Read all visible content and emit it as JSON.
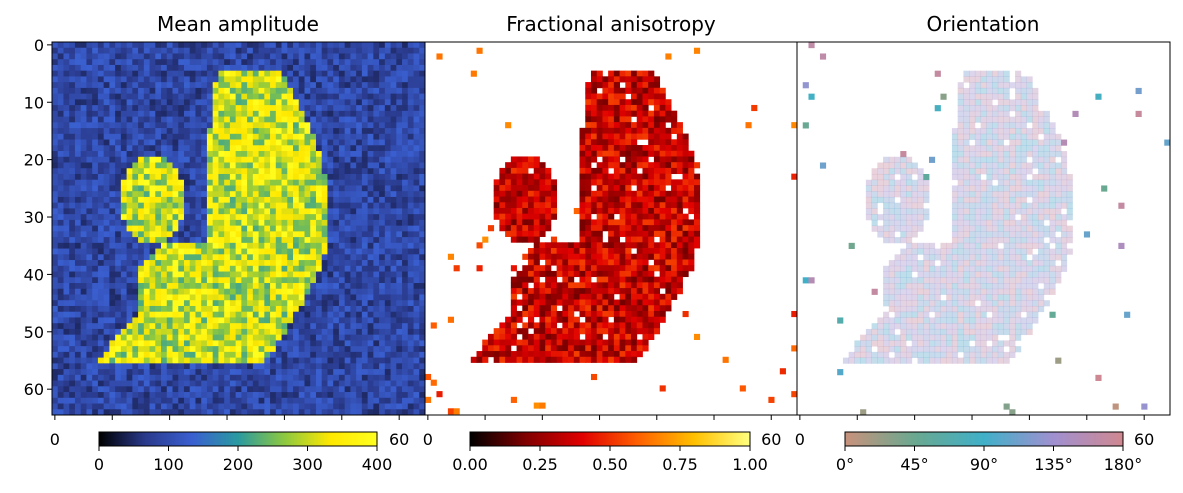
{
  "chart_data": [
    {
      "type": "heatmap",
      "title": "Mean amplitude",
      "grid_size": [
        65,
        65
      ],
      "xlim": [
        0,
        64
      ],
      "ylim": [
        64,
        0
      ],
      "y_ticks": [
        "0",
        "10",
        "20",
        "30",
        "40",
        "50",
        "60"
      ],
      "x_ticks": [
        "0",
        "60"
      ],
      "colorbar": {
        "min": 0,
        "max": 400,
        "ticks": [
          "0",
          "100",
          "200",
          "300",
          "400"
        ],
        "colormap": [
          "#000000",
          "#2a3a8c",
          "#3a5fd0",
          "#2a9aa0",
          "#8cc840",
          "#ffe800",
          "#ffff20"
        ]
      }
    },
    {
      "type": "heatmap",
      "title": "Fractional anisotropy",
      "grid_size": [
        65,
        65
      ],
      "xlim": [
        0,
        64
      ],
      "ylim": [
        64,
        0
      ],
      "x_ticks": [
        "0",
        "60"
      ],
      "colorbar": {
        "min": 0,
        "max": 1,
        "ticks": [
          "0.00",
          "0.25",
          "0.50",
          "0.75",
          "1.00"
        ],
        "colormap": [
          "#000000",
          "#800000",
          "#e00000",
          "#ff6000",
          "#ffc000",
          "#ffff80"
        ]
      }
    },
    {
      "type": "heatmap",
      "title": "Orientation",
      "grid_size": [
        65,
        65
      ],
      "xlim": [
        0,
        64
      ],
      "ylim": [
        64,
        0
      ],
      "x_ticks": [
        "0",
        "60"
      ],
      "colorbar": {
        "min": 0,
        "max": 180,
        "ticks": [
          "0°",
          "45°",
          "90°",
          "135°",
          "180°"
        ],
        "colormap": [
          "#c8927c",
          "#6aa890",
          "#40b0c8",
          "#a090d0",
          "#d08890"
        ]
      }
    }
  ]
}
